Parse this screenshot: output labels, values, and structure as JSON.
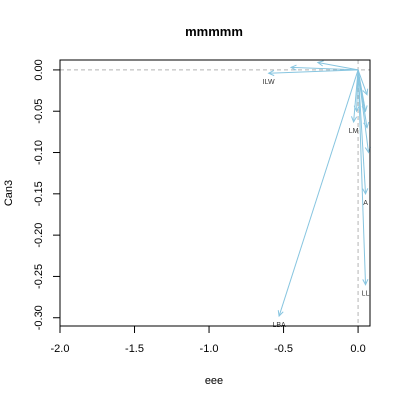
{
  "chart_data": {
    "type": "biplot-vectors",
    "title": "mmmmm",
    "xlabel": "eee",
    "ylabel": "Can3",
    "xlim": [
      -2.0,
      0.08
    ],
    "ylim": [
      -0.31,
      0.012
    ],
    "xticks": [
      -2.0,
      -1.5,
      -1.0,
      -0.5,
      0.0
    ],
    "xtick_labels": [
      "-2.0",
      "-1.5",
      "-1.0",
      "-0.5",
      "0.0"
    ],
    "yticks": [
      0.0,
      -0.05,
      -0.1,
      -0.15,
      -0.2,
      -0.25,
      -0.3
    ],
    "ytick_labels": [
      "0.00",
      "-0.05",
      "-0.10",
      "-0.15",
      "-0.20",
      "-0.25",
      "-0.30"
    ],
    "reference_lines": {
      "x": 0.0,
      "y": 0.0
    },
    "arrow_color": "#87c5e0",
    "reference_color": "#b4b4b4",
    "origin": [
      0.0,
      0.0
    ],
    "vectors": [
      {
        "label": "ILW",
        "x": -0.6,
        "y": -0.004,
        "show_label": true
      },
      {
        "label": "LM",
        "x": -0.03,
        "y": -0.063,
        "show_label": true
      },
      {
        "label": "LBA",
        "x": -0.53,
        "y": -0.298,
        "show_label": true
      },
      {
        "label": "A",
        "x": 0.05,
        "y": -0.15,
        "show_label": true
      },
      {
        "label": "LL",
        "x": 0.05,
        "y": -0.26,
        "show_label": true
      },
      {
        "label": "",
        "x": -0.27,
        "y": 0.009,
        "show_label": false
      },
      {
        "label": "",
        "x": -0.45,
        "y": 0.003,
        "show_label": false
      },
      {
        "label": "",
        "x": 0.07,
        "y": -0.1,
        "show_label": false
      },
      {
        "label": "",
        "x": 0.06,
        "y": -0.07,
        "show_label": false
      },
      {
        "label": "",
        "x": 0.06,
        "y": -0.03,
        "show_label": false
      },
      {
        "label": "",
        "x": -0.01,
        "y": -0.05,
        "show_label": false
      },
      {
        "label": "",
        "x": 0.05,
        "y": -0.05,
        "show_label": false
      }
    ]
  }
}
